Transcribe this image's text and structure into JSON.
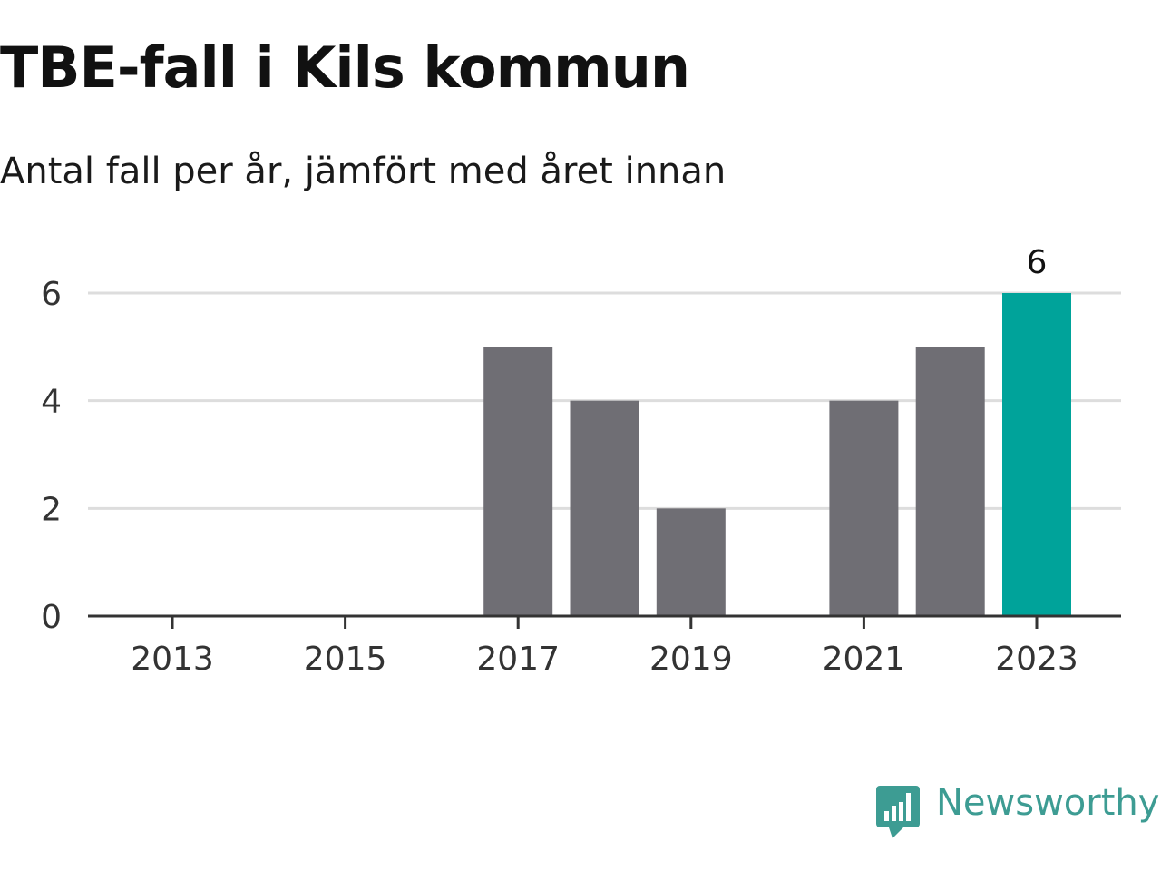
{
  "title": "TBE-fall i Kils kommun",
  "subtitle": "Antal fall per år, jämfört med året innan",
  "brand": {
    "name": "Newsworthy",
    "icon": "newsworthy-logo-icon",
    "color": "#3d9c93"
  },
  "colors": {
    "bar": "#6f6e74",
    "highlight": "#00a39a",
    "grid": "#dddddd",
    "axis": "#333333",
    "text": "#333333"
  },
  "chart_data": {
    "type": "bar",
    "categories": [
      "2013",
      "2014",
      "2015",
      "2016",
      "2017",
      "2018",
      "2019",
      "2020",
      "2021",
      "2022",
      "2023"
    ],
    "values": [
      0,
      0,
      0,
      0,
      5,
      4,
      2,
      0,
      4,
      5,
      6
    ],
    "highlight_index": 10,
    "data_labels": [
      {
        "index": 10,
        "text": "6"
      }
    ],
    "x_tick_labels": [
      "2013",
      "2015",
      "2017",
      "2019",
      "2021",
      "2023"
    ],
    "y_ticks": [
      0,
      2,
      4,
      6
    ],
    "ylim": [
      0,
      6
    ],
    "grid": true,
    "xlabel": "",
    "ylabel": ""
  }
}
